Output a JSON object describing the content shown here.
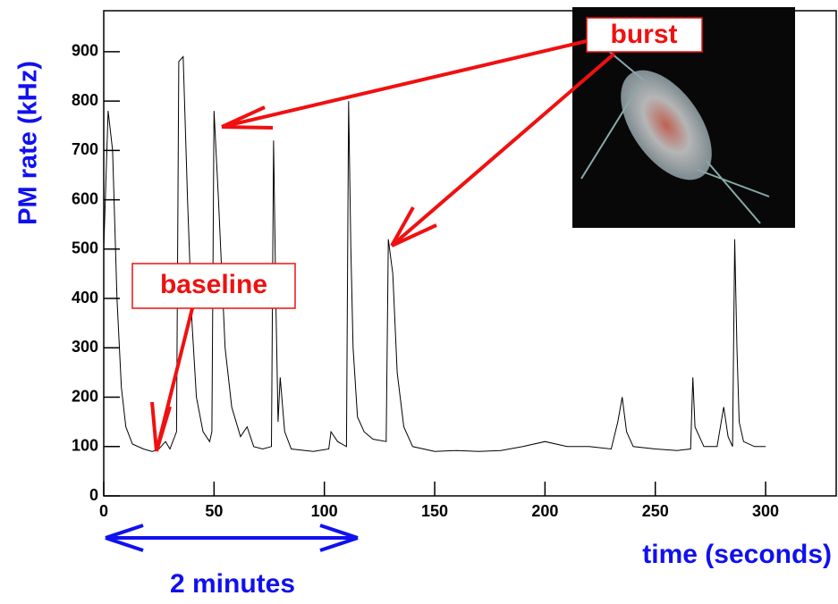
{
  "chart_data": {
    "type": "line",
    "y_label": "PM rate (kHz)",
    "x_label": "time (seconds)",
    "annotations": {
      "burst": "burst",
      "baseline": "baseline",
      "span": "2 minutes"
    },
    "color": "#000000",
    "x": [
      0,
      2,
      4,
      6,
      8,
      10,
      13,
      18,
      22,
      25,
      28,
      30,
      33,
      34,
      36,
      38,
      40,
      42,
      45,
      48,
      49,
      50,
      52,
      55,
      58,
      62,
      65,
      68,
      72,
      76,
      77,
      78,
      79,
      80,
      82,
      85,
      95,
      102,
      103,
      106,
      110,
      111,
      112,
      113,
      115,
      118,
      122,
      128,
      129,
      131,
      133,
      136,
      140,
      150,
      160,
      170,
      180,
      190,
      200,
      210,
      220,
      230,
      233,
      235,
      237,
      240,
      250,
      260,
      266,
      267,
      268,
      272,
      278,
      281,
      283,
      285,
      286,
      287,
      288,
      290,
      295,
      300
    ],
    "values": [
      500,
      780,
      700,
      400,
      220,
      140,
      105,
      95,
      90,
      95,
      110,
      95,
      130,
      880,
      890,
      600,
      350,
      200,
      130,
      110,
      130,
      780,
      600,
      300,
      180,
      120,
      140,
      100,
      95,
      100,
      720,
      400,
      150,
      240,
      130,
      95,
      90,
      95,
      130,
      110,
      100,
      800,
      500,
      300,
      160,
      130,
      115,
      110,
      520,
      450,
      250,
      140,
      100,
      90,
      92,
      90,
      92,
      100,
      110,
      100,
      100,
      95,
      150,
      200,
      130,
      100,
      95,
      92,
      95,
      240,
      140,
      100,
      100,
      180,
      120,
      100,
      520,
      300,
      150,
      110,
      100,
      100
    ],
    "xlim": [
      0,
      332
    ],
    "ylim": [
      0,
      983
    ],
    "xticks": [
      0,
      50,
      100,
      150,
      200,
      250,
      300
    ],
    "yticks": [
      0,
      100,
      200,
      300,
      400,
      500,
      600,
      700,
      800,
      900
    ]
  }
}
